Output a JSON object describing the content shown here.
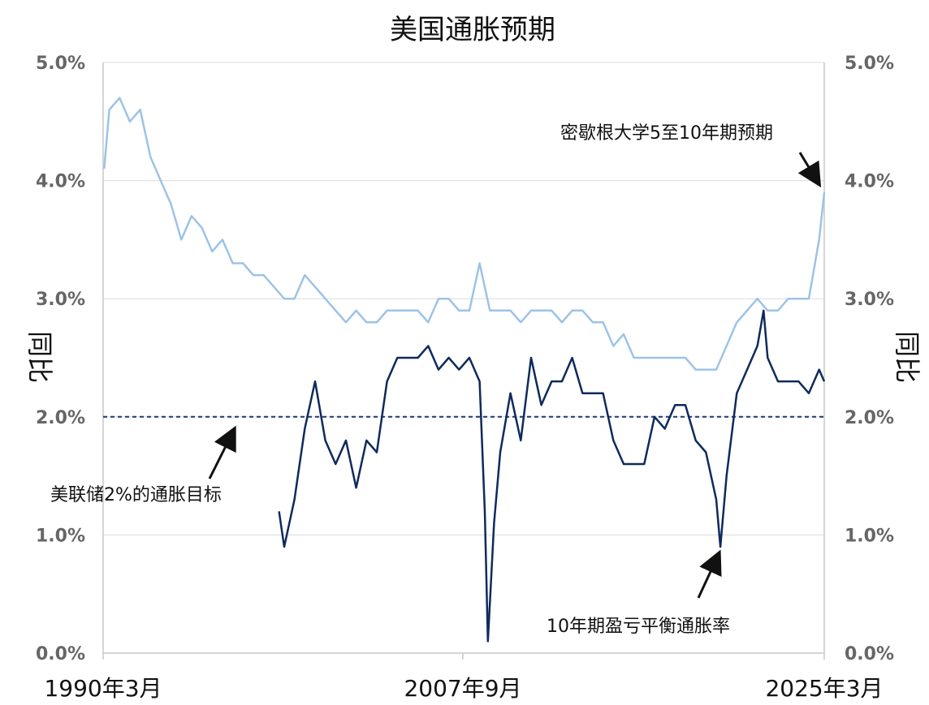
{
  "chart_data": {
    "type": "line",
    "title": "美国通胀预期",
    "ylabel_left": "同比",
    "ylabel_right": "同比",
    "ylim": [
      0,
      5
    ],
    "y_ticks": [
      "0.0%",
      "1.0%",
      "2.0%",
      "3.0%",
      "4.0%",
      "5.0%"
    ],
    "x_tick_labels": [
      "1990年3月",
      "2007年9月",
      "2025年3月"
    ],
    "grid": true,
    "reference_line": {
      "value": 2.0,
      "label": "美联储2%的通胀目标",
      "style": "dashed"
    },
    "series": [
      {
        "name": "密歇根大学5至10年期预期",
        "color": "#9dc3e6",
        "points": [
          [
            1990.25,
            4.1
          ],
          [
            1990.5,
            4.6
          ],
          [
            1991.0,
            4.7
          ],
          [
            1991.5,
            4.5
          ],
          [
            1992.0,
            4.6
          ],
          [
            1992.5,
            4.2
          ],
          [
            1993.0,
            4.0
          ],
          [
            1993.5,
            3.8
          ],
          [
            1994.0,
            3.5
          ],
          [
            1994.5,
            3.7
          ],
          [
            1995.0,
            3.6
          ],
          [
            1995.5,
            3.4
          ],
          [
            1996.0,
            3.5
          ],
          [
            1996.5,
            3.3
          ],
          [
            1997.0,
            3.3
          ],
          [
            1997.5,
            3.2
          ],
          [
            1998.0,
            3.2
          ],
          [
            1998.5,
            3.1
          ],
          [
            1999.0,
            3.0
          ],
          [
            1999.5,
            3.0
          ],
          [
            2000.0,
            3.2
          ],
          [
            2000.5,
            3.1
          ],
          [
            2001.0,
            3.0
          ],
          [
            2001.5,
            2.9
          ],
          [
            2002.0,
            2.8
          ],
          [
            2002.5,
            2.9
          ],
          [
            2003.0,
            2.8
          ],
          [
            2003.5,
            2.8
          ],
          [
            2004.0,
            2.9
          ],
          [
            2004.5,
            2.9
          ],
          [
            2005.0,
            2.9
          ],
          [
            2005.5,
            2.9
          ],
          [
            2006.0,
            2.8
          ],
          [
            2006.5,
            3.0
          ],
          [
            2007.0,
            3.0
          ],
          [
            2007.5,
            2.9
          ],
          [
            2008.0,
            2.9
          ],
          [
            2008.5,
            3.3
          ],
          [
            2009.0,
            2.9
          ],
          [
            2009.5,
            2.9
          ],
          [
            2010.0,
            2.9
          ],
          [
            2010.5,
            2.8
          ],
          [
            2011.0,
            2.9
          ],
          [
            2011.5,
            2.9
          ],
          [
            2012.0,
            2.9
          ],
          [
            2012.5,
            2.8
          ],
          [
            2013.0,
            2.9
          ],
          [
            2013.5,
            2.9
          ],
          [
            2014.0,
            2.8
          ],
          [
            2014.5,
            2.8
          ],
          [
            2015.0,
            2.6
          ],
          [
            2015.5,
            2.7
          ],
          [
            2016.0,
            2.5
          ],
          [
            2016.5,
            2.5
          ],
          [
            2017.0,
            2.5
          ],
          [
            2017.5,
            2.5
          ],
          [
            2018.0,
            2.5
          ],
          [
            2018.5,
            2.5
          ],
          [
            2019.0,
            2.4
          ],
          [
            2019.5,
            2.4
          ],
          [
            2020.0,
            2.4
          ],
          [
            2020.5,
            2.6
          ],
          [
            2021.0,
            2.8
          ],
          [
            2021.5,
            2.9
          ],
          [
            2022.0,
            3.0
          ],
          [
            2022.5,
            2.9
          ],
          [
            2023.0,
            2.9
          ],
          [
            2023.5,
            3.0
          ],
          [
            2024.0,
            3.0
          ],
          [
            2024.5,
            3.0
          ],
          [
            2025.0,
            3.5
          ],
          [
            2025.25,
            3.9
          ]
        ]
      },
      {
        "name": "10年期盈亏平衡通胀率",
        "color": "#0f2a5c",
        "points": [
          [
            1998.75,
            1.2
          ],
          [
            1999.0,
            0.9
          ],
          [
            1999.5,
            1.3
          ],
          [
            2000.0,
            1.9
          ],
          [
            2000.5,
            2.3
          ],
          [
            2001.0,
            1.8
          ],
          [
            2001.5,
            1.6
          ],
          [
            2002.0,
            1.8
          ],
          [
            2002.5,
            1.4
          ],
          [
            2003.0,
            1.8
          ],
          [
            2003.5,
            1.7
          ],
          [
            2004.0,
            2.3
          ],
          [
            2004.5,
            2.5
          ],
          [
            2005.0,
            2.5
          ],
          [
            2005.5,
            2.5
          ],
          [
            2006.0,
            2.6
          ],
          [
            2006.5,
            2.4
          ],
          [
            2007.0,
            2.5
          ],
          [
            2007.5,
            2.4
          ],
          [
            2008.0,
            2.5
          ],
          [
            2008.5,
            2.3
          ],
          [
            2008.75,
            1.2
          ],
          [
            2008.9,
            0.1
          ],
          [
            2009.2,
            1.1
          ],
          [
            2009.5,
            1.7
          ],
          [
            2010.0,
            2.2
          ],
          [
            2010.5,
            1.8
          ],
          [
            2011.0,
            2.5
          ],
          [
            2011.5,
            2.1
          ],
          [
            2012.0,
            2.3
          ],
          [
            2012.5,
            2.3
          ],
          [
            2013.0,
            2.5
          ],
          [
            2013.5,
            2.2
          ],
          [
            2014.0,
            2.2
          ],
          [
            2014.5,
            2.2
          ],
          [
            2015.0,
            1.8
          ],
          [
            2015.5,
            1.6
          ],
          [
            2016.0,
            1.6
          ],
          [
            2016.5,
            1.6
          ],
          [
            2017.0,
            2.0
          ],
          [
            2017.5,
            1.9
          ],
          [
            2018.0,
            2.1
          ],
          [
            2018.5,
            2.1
          ],
          [
            2019.0,
            1.8
          ],
          [
            2019.5,
            1.7
          ],
          [
            2020.0,
            1.3
          ],
          [
            2020.2,
            0.9
          ],
          [
            2020.5,
            1.5
          ],
          [
            2021.0,
            2.2
          ],
          [
            2021.5,
            2.4
          ],
          [
            2022.0,
            2.6
          ],
          [
            2022.3,
            2.9
          ],
          [
            2022.5,
            2.5
          ],
          [
            2023.0,
            2.3
          ],
          [
            2023.5,
            2.3
          ],
          [
            2024.0,
            2.3
          ],
          [
            2024.5,
            2.2
          ],
          [
            2025.0,
            2.4
          ],
          [
            2025.25,
            2.3
          ]
        ]
      }
    ],
    "annotations": [
      {
        "text": "密歇根大学5至10年期预期",
        "target": [
          2025.15,
          3.9
        ]
      },
      {
        "text": "美联储2%的通胀目标",
        "target": [
          1996.5,
          2.0
        ]
      },
      {
        "text": "10年期盈亏平衡通胀率",
        "target": [
          2020.25,
          0.9
        ]
      }
    ]
  }
}
